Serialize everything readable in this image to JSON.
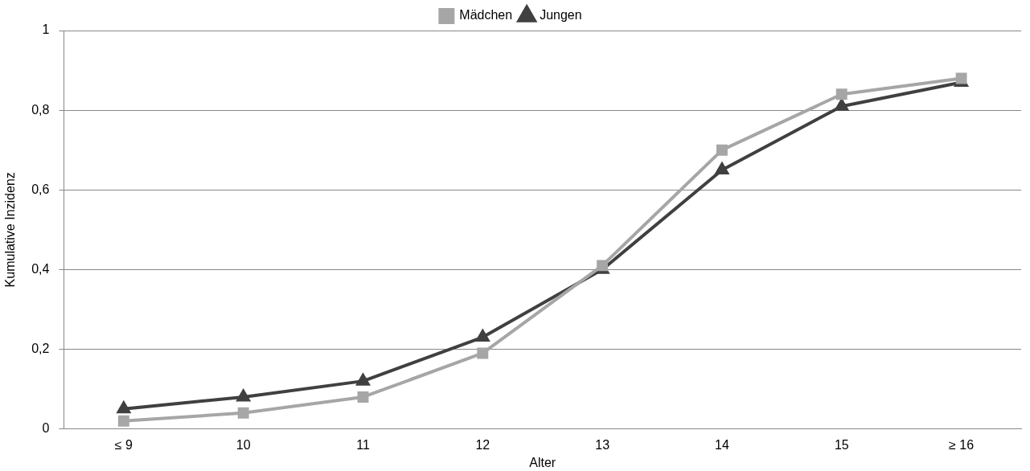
{
  "chart_data": {
    "type": "line",
    "xlabel": "Alter",
    "ylabel": "Kumulative Inzidenz",
    "categories": [
      "≤ 9",
      "10",
      "11",
      "12",
      "13",
      "14",
      "15",
      "≥ 16"
    ],
    "series": [
      {
        "name": "Jungen",
        "color": "#404040",
        "marker": "triangle",
        "values": [
          0.05,
          0.08,
          0.12,
          0.23,
          0.4,
          0.65,
          0.81,
          0.87
        ]
      },
      {
        "name": "Mädchen",
        "color": "#a6a6a6",
        "marker": "square",
        "values": [
          0.02,
          0.04,
          0.08,
          0.19,
          0.41,
          0.7,
          0.84,
          0.88
        ]
      }
    ],
    "ylim": [
      0,
      1
    ],
    "yticks": [
      {
        "value": 0,
        "label": "0"
      },
      {
        "value": 0.2,
        "label": "0,2"
      },
      {
        "value": 0.4,
        "label": "0,4"
      },
      {
        "value": 0.6,
        "label": "0,6"
      },
      {
        "value": 0.8,
        "label": "0,8"
      },
      {
        "value": 1,
        "label": "1"
      }
    ],
    "grid": "y",
    "legend": "top",
    "line_style": "solid"
  }
}
